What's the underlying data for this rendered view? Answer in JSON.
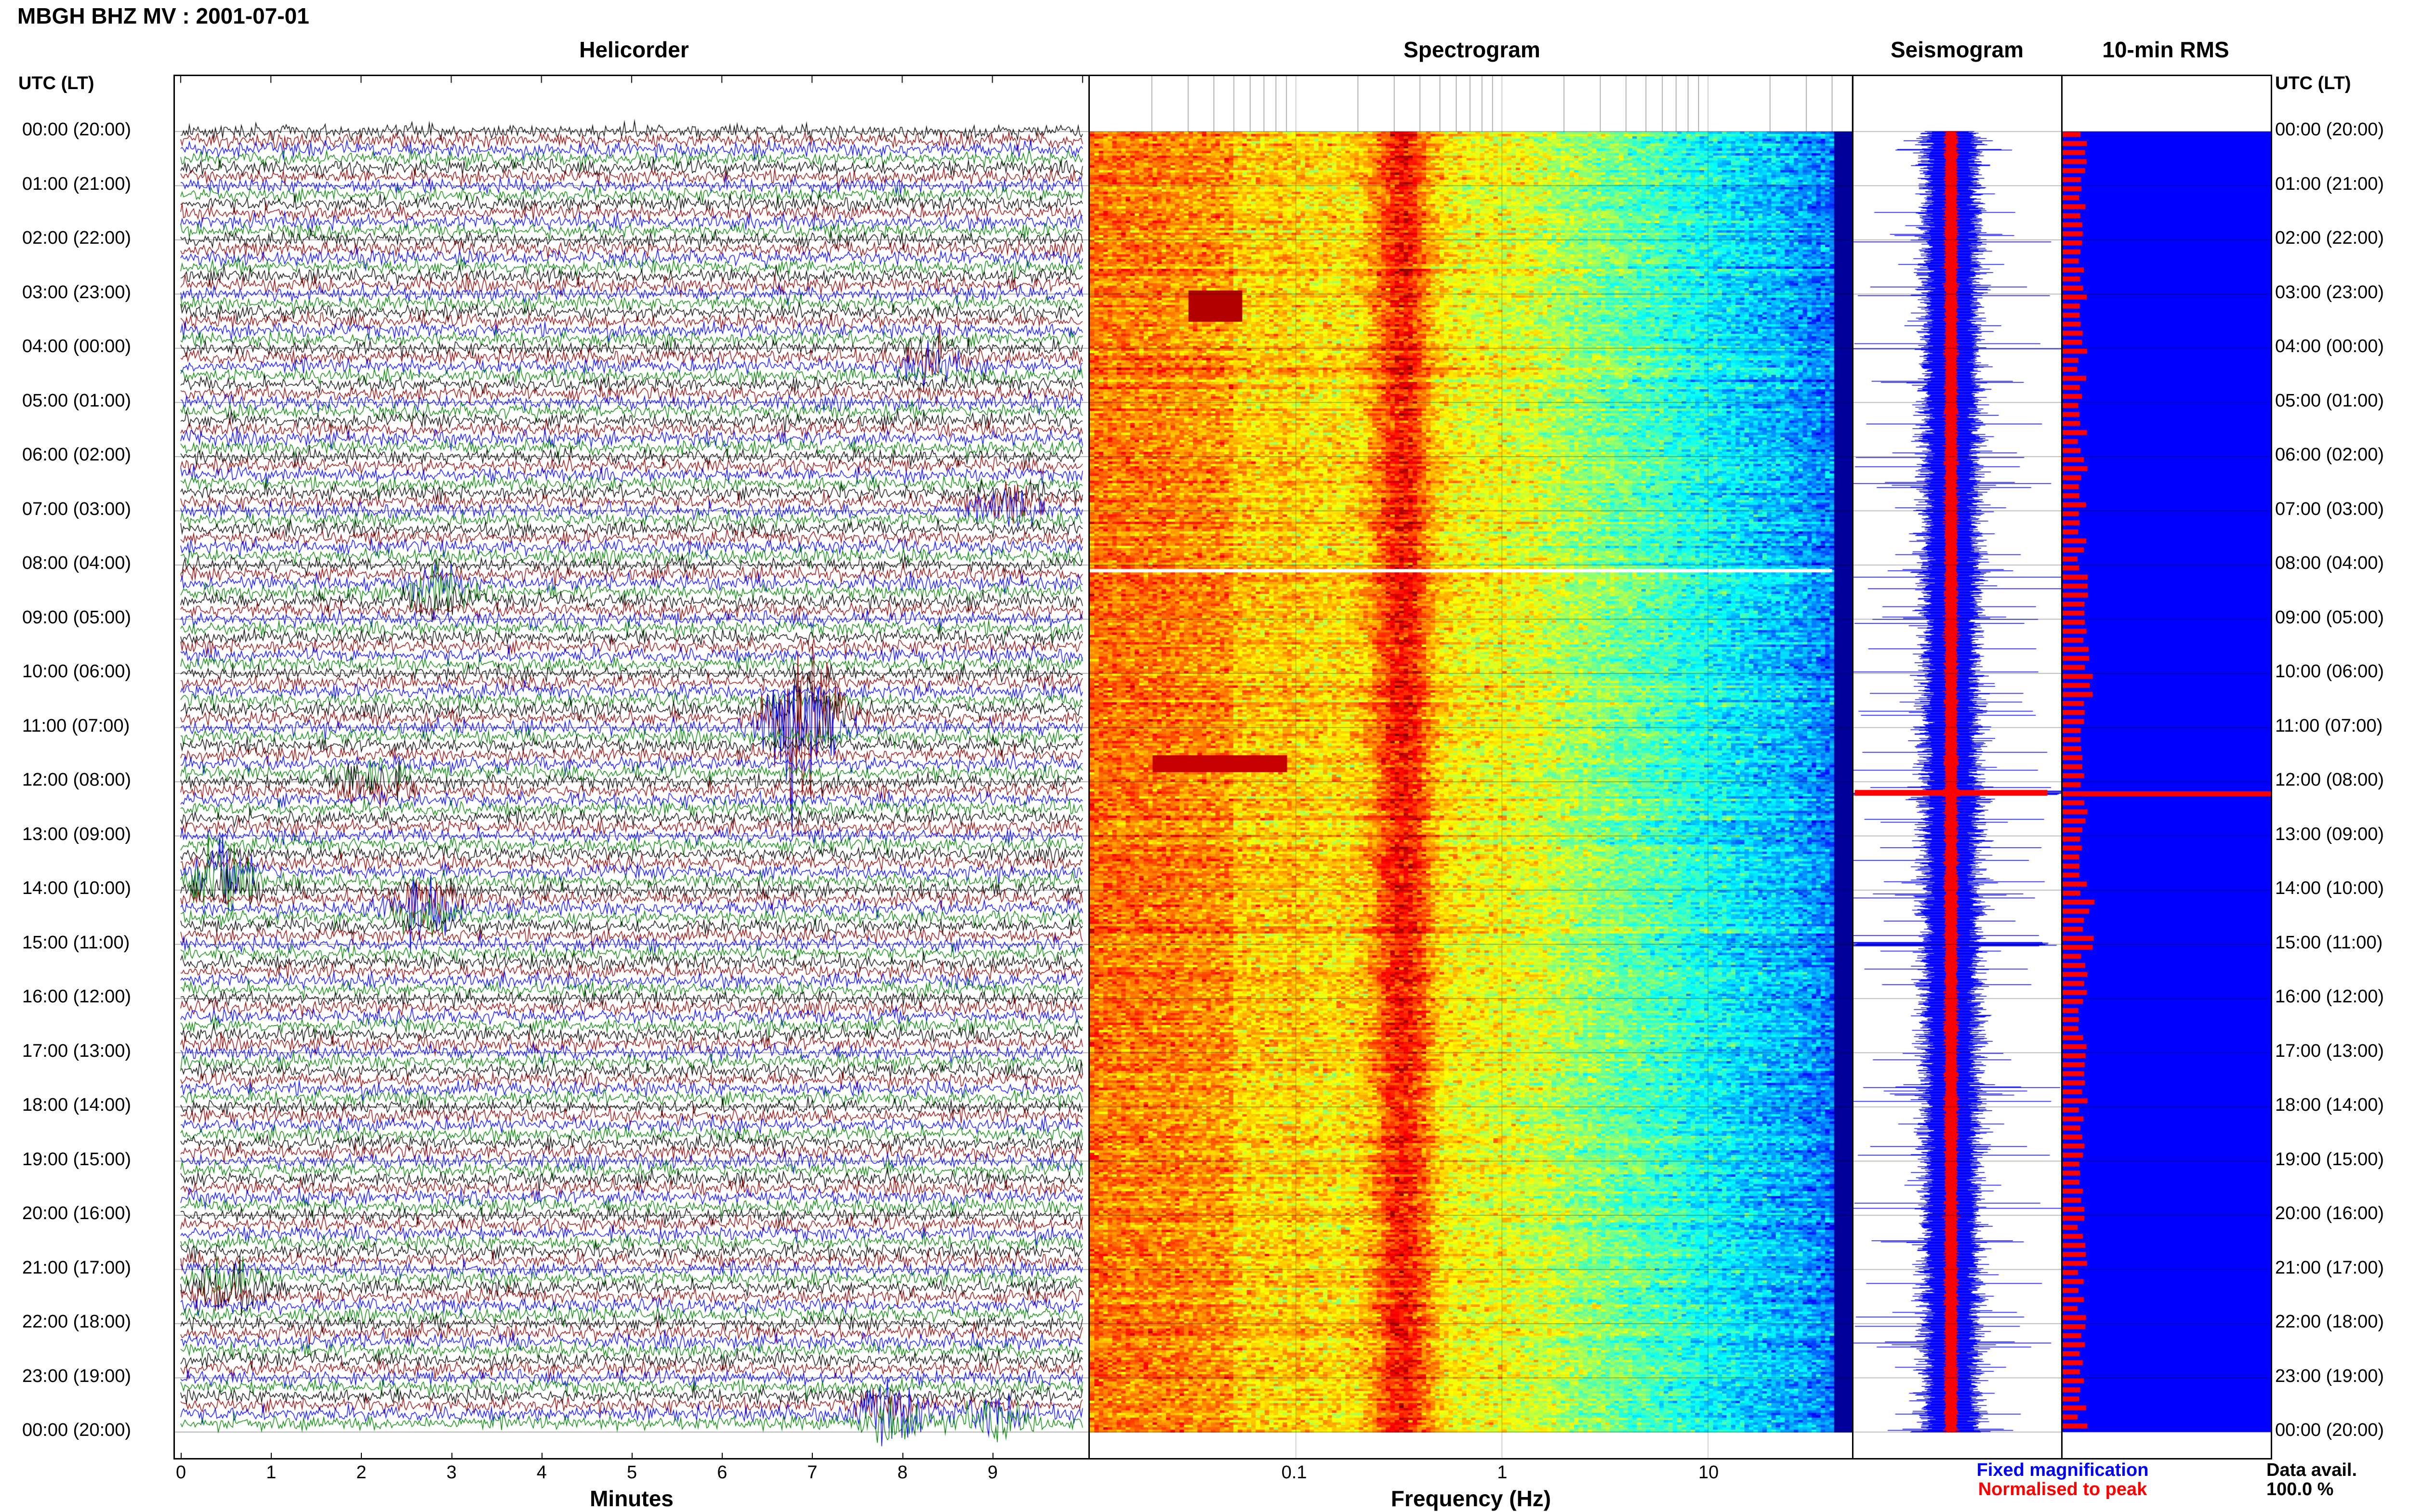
{
  "header": {
    "title": "MBGH BHZ MV : 2001-07-01",
    "utc_label_left": "UTC (LT)",
    "utc_label_right": "UTC (LT)"
  },
  "panels": {
    "helicorder": "Helicorder",
    "spectrogram": "Spectrogram",
    "seismogram": "Seismogram",
    "rms": "10-min RMS"
  },
  "time_labels": [
    "00:00 (20:00)",
    "01:00 (21:00)",
    "02:00 (22:00)",
    "03:00 (23:00)",
    "04:00 (00:00)",
    "05:00 (01:00)",
    "06:00 (02:00)",
    "07:00 (03:00)",
    "08:00 (04:00)",
    "09:00 (05:00)",
    "10:00 (06:00)",
    "11:00 (07:00)",
    "12:00 (08:00)",
    "13:00 (09:00)",
    "14:00 (10:00)",
    "15:00 (11:00)",
    "16:00 (12:00)",
    "17:00 (13:00)",
    "18:00 (14:00)",
    "19:00 (15:00)",
    "20:00 (16:00)",
    "21:00 (17:00)",
    "22:00 (18:00)",
    "23:00 (19:00)",
    "00:00 (20:00)"
  ],
  "legend": {
    "fixed": "Fixed magnification",
    "normalised": "Normalised to peak",
    "fixed_color": "#0000ff",
    "normalised_color": "#ff0000"
  },
  "availability": {
    "label": "Data avail.",
    "value": "100.0 %"
  },
  "chart_data": [
    {
      "type": "line",
      "name": "helicorder",
      "title": "Helicorder",
      "xlabel": "Minutes",
      "xlim": [
        0,
        10
      ],
      "xticks": [
        0,
        1,
        2,
        3,
        4,
        5,
        6,
        7,
        8,
        9
      ],
      "trace_colors": [
        "#000000",
        "#8b0000",
        "#0000ff",
        "#008000"
      ],
      "events": [
        {
          "hour": 10.9,
          "minute": 6.9,
          "amplitude": 7
        },
        {
          "hour": 13.8,
          "minute": 0.5,
          "amplitude": 2.2
        },
        {
          "hour": 14.3,
          "minute": 2.7,
          "amplitude": 2
        },
        {
          "hour": 8.5,
          "minute": 2.8,
          "amplitude": 1.5
        },
        {
          "hour": 21.3,
          "minute": 0.5,
          "amplitude": 1.8
        },
        {
          "hour": 23.7,
          "minute": 7.9,
          "amplitude": 2
        },
        {
          "hour": 23.8,
          "minute": 9.0,
          "amplitude": 1.6
        },
        {
          "hour": 12.0,
          "minute": 2.1,
          "amplitude": 1.4
        },
        {
          "hour": 4.2,
          "minute": 8.3,
          "amplitude": 1.3
        },
        {
          "hour": 6.9,
          "minute": 9.2,
          "amplitude": 1.4
        }
      ],
      "ylim": [
        0,
        24
      ]
    },
    {
      "type": "heatmap",
      "name": "spectrogram",
      "title": "Spectrogram",
      "xlabel": "Frequency (Hz)",
      "xscale": "log",
      "xlim": [
        0.01,
        50
      ],
      "xticks": [
        0.1,
        1,
        10
      ],
      "xtick_labels": [
        "0.1",
        "1",
        "10"
      ],
      "microseism_peak_hz": [
        0.25,
        0.5
      ],
      "gap_hour": 8.1,
      "ylim": [
        0,
        24
      ]
    },
    {
      "type": "line",
      "name": "seismogram",
      "title": "Seismogram",
      "series": [
        {
          "name": "Fixed magnification",
          "color": "#0000ff"
        },
        {
          "name": "Normalised to peak",
          "color": "#ff0000"
        }
      ],
      "ylim": [
        0,
        24
      ]
    },
    {
      "type": "bar",
      "name": "rms",
      "title": "10-min RMS",
      "orientation": "horizontal",
      "bins_per_day": 144,
      "peak_hour": 12.2,
      "series": [
        {
          "name": "Fixed magnification",
          "color": "#0000ff"
        },
        {
          "name": "Normalised to peak",
          "color": "#ff0000"
        }
      ],
      "ylim": [
        0,
        24
      ]
    }
  ]
}
